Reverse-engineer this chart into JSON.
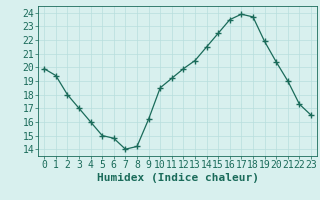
{
  "x": [
    0,
    1,
    2,
    3,
    4,
    5,
    6,
    7,
    8,
    9,
    10,
    11,
    12,
    13,
    14,
    15,
    16,
    17,
    18,
    19,
    20,
    21,
    22,
    23
  ],
  "y": [
    19.9,
    19.4,
    18.0,
    17.0,
    16.0,
    15.0,
    14.8,
    14.0,
    14.2,
    16.2,
    18.5,
    19.2,
    19.9,
    20.5,
    21.5,
    22.5,
    23.5,
    23.9,
    23.7,
    21.9,
    20.4,
    19.0,
    17.3,
    16.5
  ],
  "xlabel": "Humidex (Indice chaleur)",
  "xlim": [
    -0.5,
    23.5
  ],
  "ylim": [
    13.5,
    24.5
  ],
  "yticks": [
    14,
    15,
    16,
    17,
    18,
    19,
    20,
    21,
    22,
    23,
    24
  ],
  "xticks": [
    0,
    1,
    2,
    3,
    4,
    5,
    6,
    7,
    8,
    9,
    10,
    11,
    12,
    13,
    14,
    15,
    16,
    17,
    18,
    19,
    20,
    21,
    22,
    23
  ],
  "line_color": "#1a6b5a",
  "marker": "+",
  "bg_color": "#d8f0ee",
  "grid_color": "#b8dedd",
  "tick_label_color": "#1a6b5a",
  "xlabel_color": "#1a6b5a",
  "label_fontsize": 8,
  "tick_fontsize": 7
}
